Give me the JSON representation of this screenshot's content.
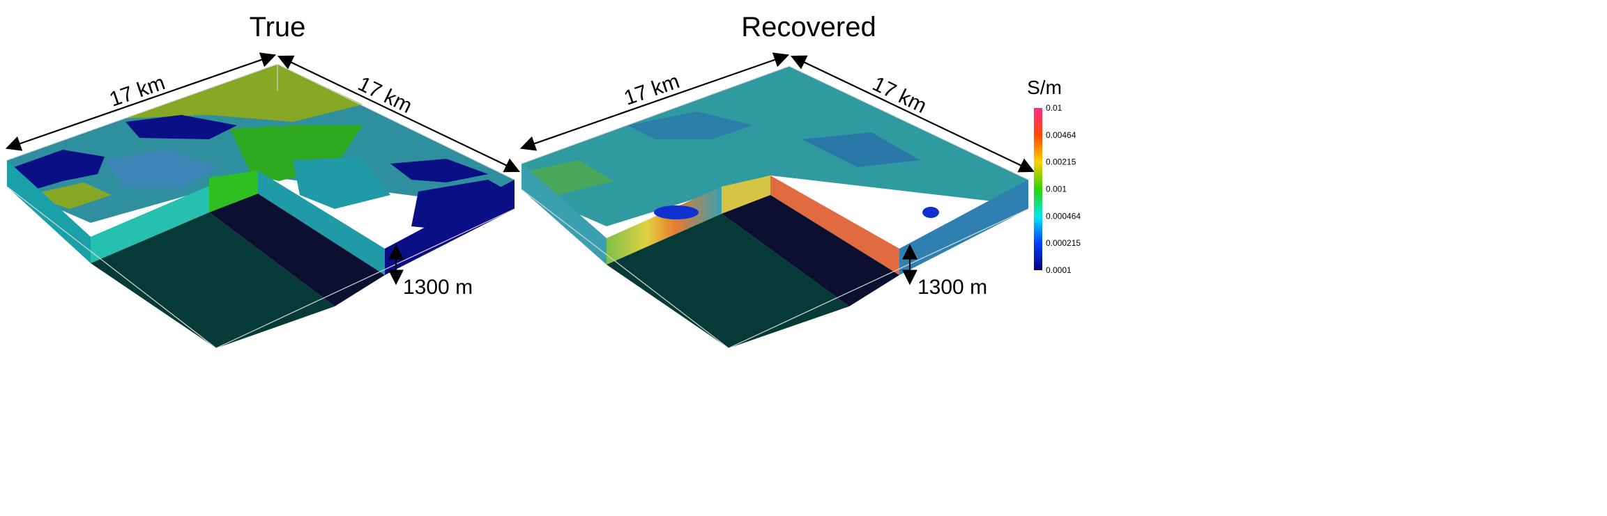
{
  "panels": {
    "true": {
      "title": "True",
      "width_label_left": "17 km",
      "width_label_right": "17 km",
      "depth_label": "1300 m"
    },
    "recovered": {
      "title": "Recovered",
      "width_label_left": "17 km",
      "width_label_right": "17 km",
      "depth_label": "1300 m"
    }
  },
  "colorbar": {
    "unit": "S/m",
    "ticks": [
      "0.01",
      "0.00464",
      "0.00215",
      "0.001",
      "0.000464",
      "0.000215",
      "0.0001"
    ],
    "colors": [
      "#ff2b8a",
      "#ff4a00",
      "#ffd000",
      "#2bd400",
      "#00e8f0",
      "#0040ff",
      "#00007a"
    ]
  },
  "colors": {
    "true_dark_blue": "#0b0f86",
    "true_mid_blue": "#3f86b8",
    "true_teal": "#1f9aa6",
    "true_olive": "#86a825",
    "true_green": "#2ea81f",
    "recovered_base": "#2f9aa0",
    "cutout_dark": "#0c1030",
    "cutout_floor": "#063a36"
  }
}
